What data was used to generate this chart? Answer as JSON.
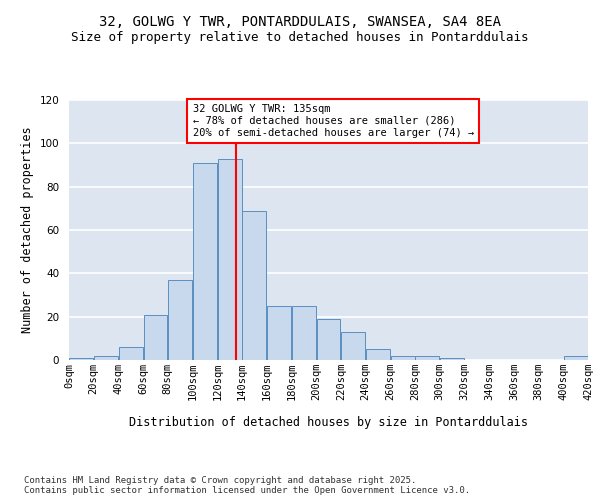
{
  "title_line1": "32, GOLWG Y TWR, PONTARDDULAIS, SWANSEA, SA4 8EA",
  "title_line2": "Size of property relative to detached houses in Pontarddulais",
  "xlabel": "Distribution of detached houses by size in Pontarddulais",
  "ylabel": "Number of detached properties",
  "bin_lefts": [
    0,
    20,
    40,
    60,
    80,
    100,
    120,
    140,
    160,
    180,
    200,
    220,
    240,
    260,
    280,
    300,
    320,
    340,
    360,
    380,
    400
  ],
  "bar_heights": [
    1,
    2,
    6,
    21,
    37,
    91,
    93,
    69,
    25,
    25,
    19,
    13,
    5,
    2,
    2,
    1,
    0,
    0,
    0,
    0,
    2
  ],
  "bar_color": "#c9d9ed",
  "bar_edgecolor": "#5a8fc0",
  "vline_x": 135,
  "vline_color": "red",
  "annotation_text": "32 GOLWG Y TWR: 135sqm\n← 78% of detached houses are smaller (286)\n20% of semi-detached houses are larger (74) →",
  "annotation_box_color": "white",
  "annotation_box_edgecolor": "red",
  "ylim": [
    0,
    120
  ],
  "yticks": [
    0,
    20,
    40,
    60,
    80,
    100,
    120
  ],
  "background_color": "#dde6f0",
  "footer_text": "Contains HM Land Registry data © Crown copyright and database right 2025.\nContains public sector information licensed under the Open Government Licence v3.0.",
  "title_fontsize": 10,
  "subtitle_fontsize": 9,
  "axis_label_fontsize": 8.5,
  "tick_fontsize": 7.5,
  "annotation_fontsize": 7.5,
  "footer_fontsize": 6.5
}
